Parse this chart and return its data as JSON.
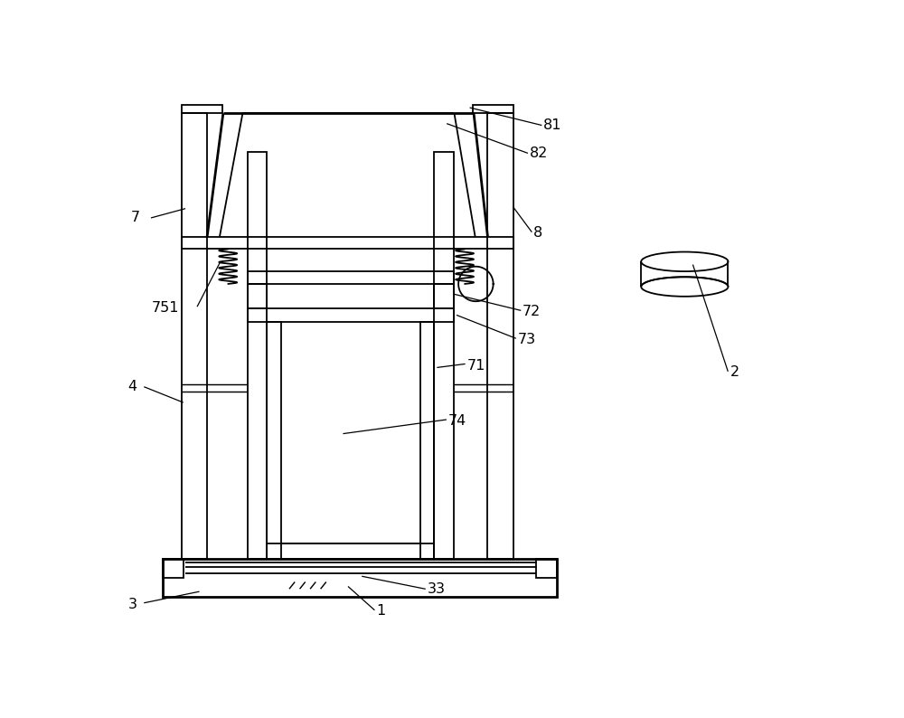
{
  "bg_color": "#ffffff",
  "line_color": "#000000",
  "lw": 1.3,
  "tlw": 2.0,
  "fig_width": 10.0,
  "fig_height": 7.94
}
